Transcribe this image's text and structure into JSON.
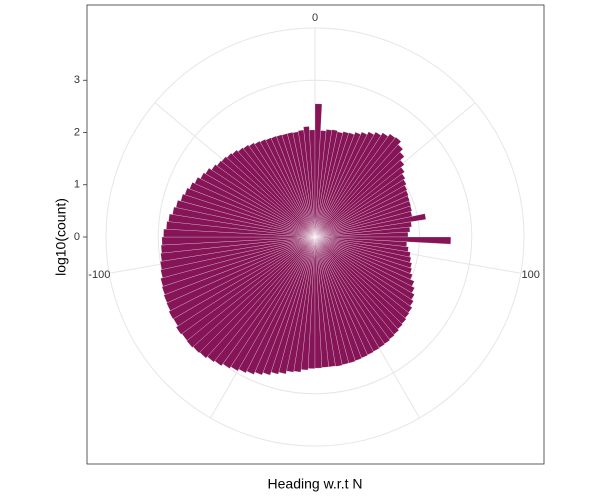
{
  "chart_data": {
    "type": "polar_bar",
    "x_label": "Heading w.r.t N",
    "y_label": "log10(count)",
    "color": "#851556",
    "xlim": [
      -180,
      180
    ],
    "xticks": [
      -100,
      0,
      100
    ],
    "ylim": [
      0,
      4
    ],
    "yticks": [
      0,
      1,
      2,
      3
    ],
    "grid": true,
    "x": [
      -178.5,
      -175.5,
      -172.5,
      -169.5,
      -166.5,
      -163.5,
      -160.5,
      -157.5,
      -154.5,
      -151.5,
      -148.5,
      -145.5,
      -142.5,
      -139.5,
      -136.5,
      -133.5,
      -130.5,
      -127.5,
      -124.5,
      -121.5,
      -118.5,
      -115.5,
      -112.5,
      -109.5,
      -106.5,
      -103.5,
      -100.5,
      -97.5,
      -94.5,
      -91.5,
      -88.5,
      -85.5,
      -82.5,
      -79.5,
      -76.5,
      -73.5,
      -70.5,
      -67.5,
      -64.5,
      -61.5,
      -58.5,
      -55.5,
      -52.5,
      -49.5,
      -46.5,
      -43.5,
      -40.5,
      -37.5,
      -34.5,
      -31.5,
      -28.5,
      -25.5,
      -22.5,
      -19.5,
      -16.5,
      -13.5,
      -10.5,
      -7.5,
      -4.5,
      -1.5,
      1.5,
      4.5,
      7.5,
      10.5,
      13.5,
      16.5,
      19.5,
      22.5,
      25.5,
      28.5,
      31.5,
      34.5,
      37.5,
      40.5,
      43.5,
      46.5,
      49.5,
      52.5,
      55.5,
      58.5,
      61.5,
      64.5,
      67.5,
      70.5,
      73.5,
      76.5,
      79.5,
      82.5,
      85.5,
      88.5,
      91.5,
      94.5,
      97.5,
      100.5,
      103.5,
      106.5,
      109.5,
      112.5,
      115.5,
      118.5,
      121.5,
      124.5,
      127.5,
      130.5,
      133.5,
      136.5,
      139.5,
      142.5,
      145.5,
      148.5,
      151.5,
      154.5,
      157.5,
      160.5,
      163.5,
      166.5,
      169.5,
      172.5,
      175.5,
      178.5
    ],
    "values": [
      2.52,
      2.55,
      2.6,
      2.62,
      2.68,
      2.72,
      2.78,
      2.83,
      2.88,
      2.92,
      2.96,
      3.0,
      3.05,
      3.08,
      3.12,
      3.14,
      3.16,
      3.15,
      3.17,
      3.13,
      3.14,
      3.11,
      3.1,
      3.08,
      3.06,
      3.02,
      3.0,
      2.97,
      2.95,
      2.93,
      2.9,
      2.85,
      2.82,
      2.76,
      2.72,
      2.66,
      2.62,
      2.57,
      2.52,
      2.46,
      2.42,
      2.36,
      2.32,
      2.3,
      2.27,
      2.24,
      2.2,
      2.18,
      2.15,
      2.12,
      2.1,
      2.08,
      2.07,
      2.06,
      2.05,
      2.05,
      2.04,
      2.06,
      2.12,
      2.05,
      2.55,
      2.04,
      2.07,
      2.08,
      2.06,
      2.09,
      2.1,
      2.15,
      2.2,
      2.26,
      2.32,
      2.38,
      2.44,
      2.46,
      2.38,
      2.3,
      2.2,
      2.12,
      2.06,
      2.02,
      1.98,
      1.96,
      1.94,
      1.93,
      1.92,
      1.9,
      2.15,
      1.86,
      1.82,
      1.78,
      2.6,
      1.76,
      1.8,
      1.85,
      1.88,
      1.92,
      1.95,
      2.0,
      2.08,
      2.14,
      2.2,
      2.25,
      2.3,
      2.32,
      2.35,
      2.37,
      2.4,
      2.42,
      2.44,
      2.45,
      2.46,
      2.47,
      2.48,
      2.49,
      2.5,
      2.5,
      2.51,
      2.5,
      2.5,
      2.51
    ]
  }
}
